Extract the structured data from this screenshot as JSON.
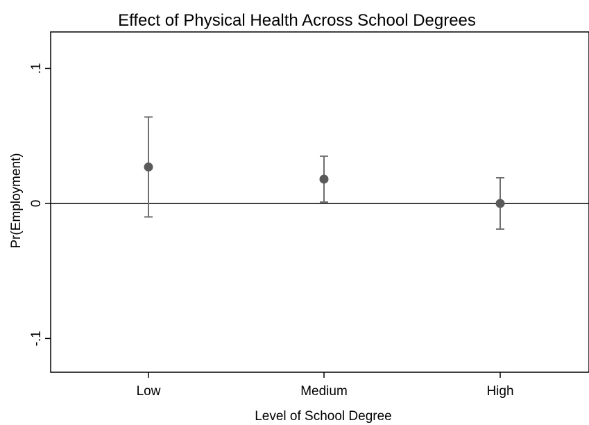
{
  "chart_data": {
    "type": "scatter",
    "title": "Effect of Physical Health Across School Degrees",
    "xlabel": "Level of School Degree",
    "ylabel": "Pr(Employment)",
    "categories": [
      "Low",
      "Medium",
      "High"
    ],
    "estimates": [
      0.027,
      0.018,
      0.0
    ],
    "ci_lower": [
      -0.01,
      0.001,
      -0.019
    ],
    "ci_upper": [
      0.064,
      0.035,
      0.019
    ],
    "ylim": [
      -0.125,
      0.127
    ],
    "yticks": [
      {
        "value": -0.1,
        "label": "-.1"
      },
      {
        "value": 0,
        "label": "0"
      },
      {
        "value": 0.1,
        "label": ".1"
      }
    ],
    "reference_line": 0,
    "grid": false,
    "legend": "none",
    "marker_color": "#5a5a5a",
    "errorbar_color": "#6e6e6e"
  }
}
